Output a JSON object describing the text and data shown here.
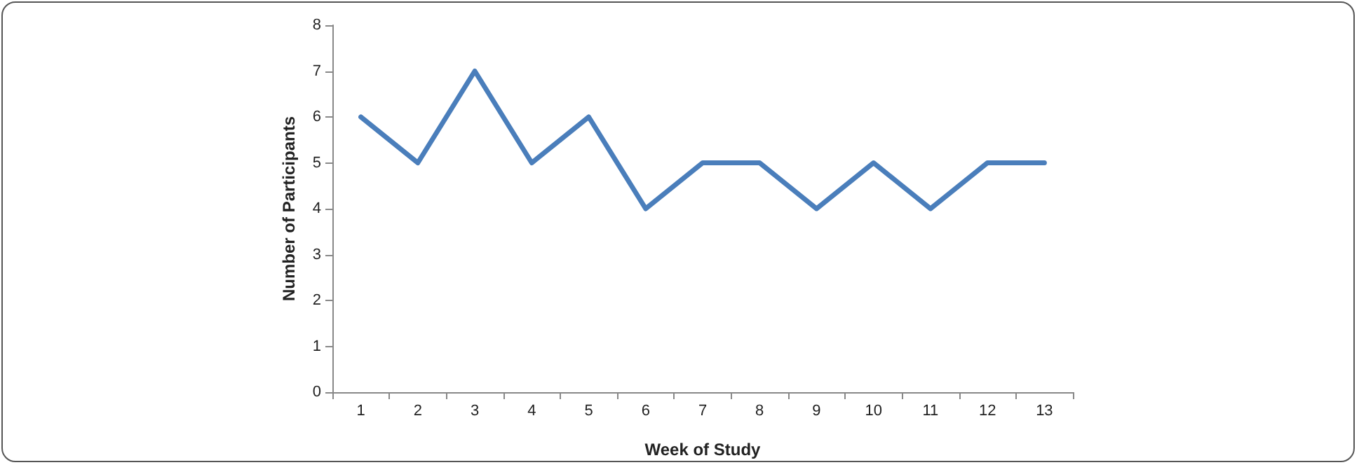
{
  "chart_data": {
    "type": "line",
    "xlabel": "Week of Study",
    "ylabel": "Number of Participants",
    "categories": [
      "1",
      "2",
      "3",
      "4",
      "5",
      "6",
      "7",
      "8",
      "9",
      "10",
      "11",
      "12",
      "13"
    ],
    "series": [
      {
        "color": "#4a7ebb",
        "values": [
          6,
          5,
          7,
          5,
          6,
          4,
          5,
          5,
          4,
          5,
          4,
          5,
          5
        ]
      }
    ],
    "ylim": [
      0,
      8
    ],
    "yticks": [
      0,
      1,
      2,
      3,
      4,
      5,
      6,
      7,
      8
    ],
    "grid": false,
    "marker": "none",
    "line_style": "solid"
  }
}
